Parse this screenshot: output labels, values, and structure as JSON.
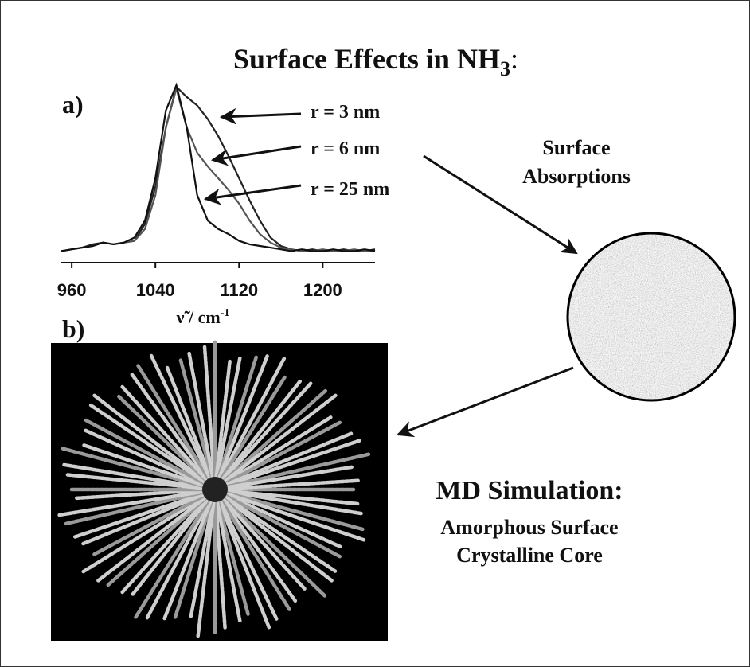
{
  "title": {
    "text": "Surface Effects in NH",
    "subscript": "3",
    "suffix": ":"
  },
  "panel_labels": [
    "a)",
    "b)"
  ],
  "chart_data": {
    "type": "line",
    "x_label": {
      "text": "ν̃ / cm",
      "superscript": "-1"
    },
    "x": [
      950,
      960,
      970,
      980,
      990,
      1000,
      1010,
      1020,
      1030,
      1040,
      1050,
      1060,
      1070,
      1080,
      1090,
      1100,
      1110,
      1120,
      1130,
      1140,
      1150,
      1160,
      1170,
      1180,
      1190,
      1200,
      1210,
      1220,
      1230,
      1240,
      1250
    ],
    "series": [
      {
        "name": "r = 3 nm",
        "color": "#222222",
        "values": [
          0.02,
          0.03,
          0.04,
          0.06,
          0.07,
          0.06,
          0.07,
          0.08,
          0.18,
          0.4,
          0.75,
          0.99,
          0.93,
          0.88,
          0.8,
          0.7,
          0.58,
          0.45,
          0.32,
          0.2,
          0.1,
          0.05,
          0.03,
          0.02,
          0.03,
          0.02,
          0.02,
          0.03,
          0.02,
          0.02,
          0.03
        ]
      },
      {
        "name": "r = 6 nm",
        "color": "#555555",
        "values": [
          0.02,
          0.03,
          0.04,
          0.05,
          0.07,
          0.06,
          0.07,
          0.08,
          0.15,
          0.35,
          0.75,
          0.98,
          0.75,
          0.6,
          0.52,
          0.45,
          0.38,
          0.3,
          0.2,
          0.12,
          0.07,
          0.04,
          0.03,
          0.02,
          0.02,
          0.03,
          0.02,
          0.02,
          0.03,
          0.02,
          0.02
        ]
      },
      {
        "name": "r = 25 nm",
        "color": "#111111",
        "values": [
          0.02,
          0.03,
          0.04,
          0.05,
          0.07,
          0.06,
          0.07,
          0.1,
          0.2,
          0.45,
          0.85,
          1.0,
          0.75,
          0.35,
          0.2,
          0.15,
          0.12,
          0.08,
          0.06,
          0.05,
          0.04,
          0.03,
          0.02,
          0.03,
          0.02,
          0.02,
          0.03,
          0.02,
          0.02,
          0.03,
          0.02
        ]
      }
    ],
    "xlim": [
      950,
      1250
    ],
    "xticks": [
      960,
      1040,
      1120,
      1200
    ],
    "ylim": [
      -0.03,
      1.0
    ]
  },
  "surface_label": [
    "Surface",
    "Absorptions"
  ],
  "md_label": {
    "heading": "MD Simulation:",
    "lines": [
      "Amorphous Surface",
      "Crystalline Core"
    ]
  }
}
